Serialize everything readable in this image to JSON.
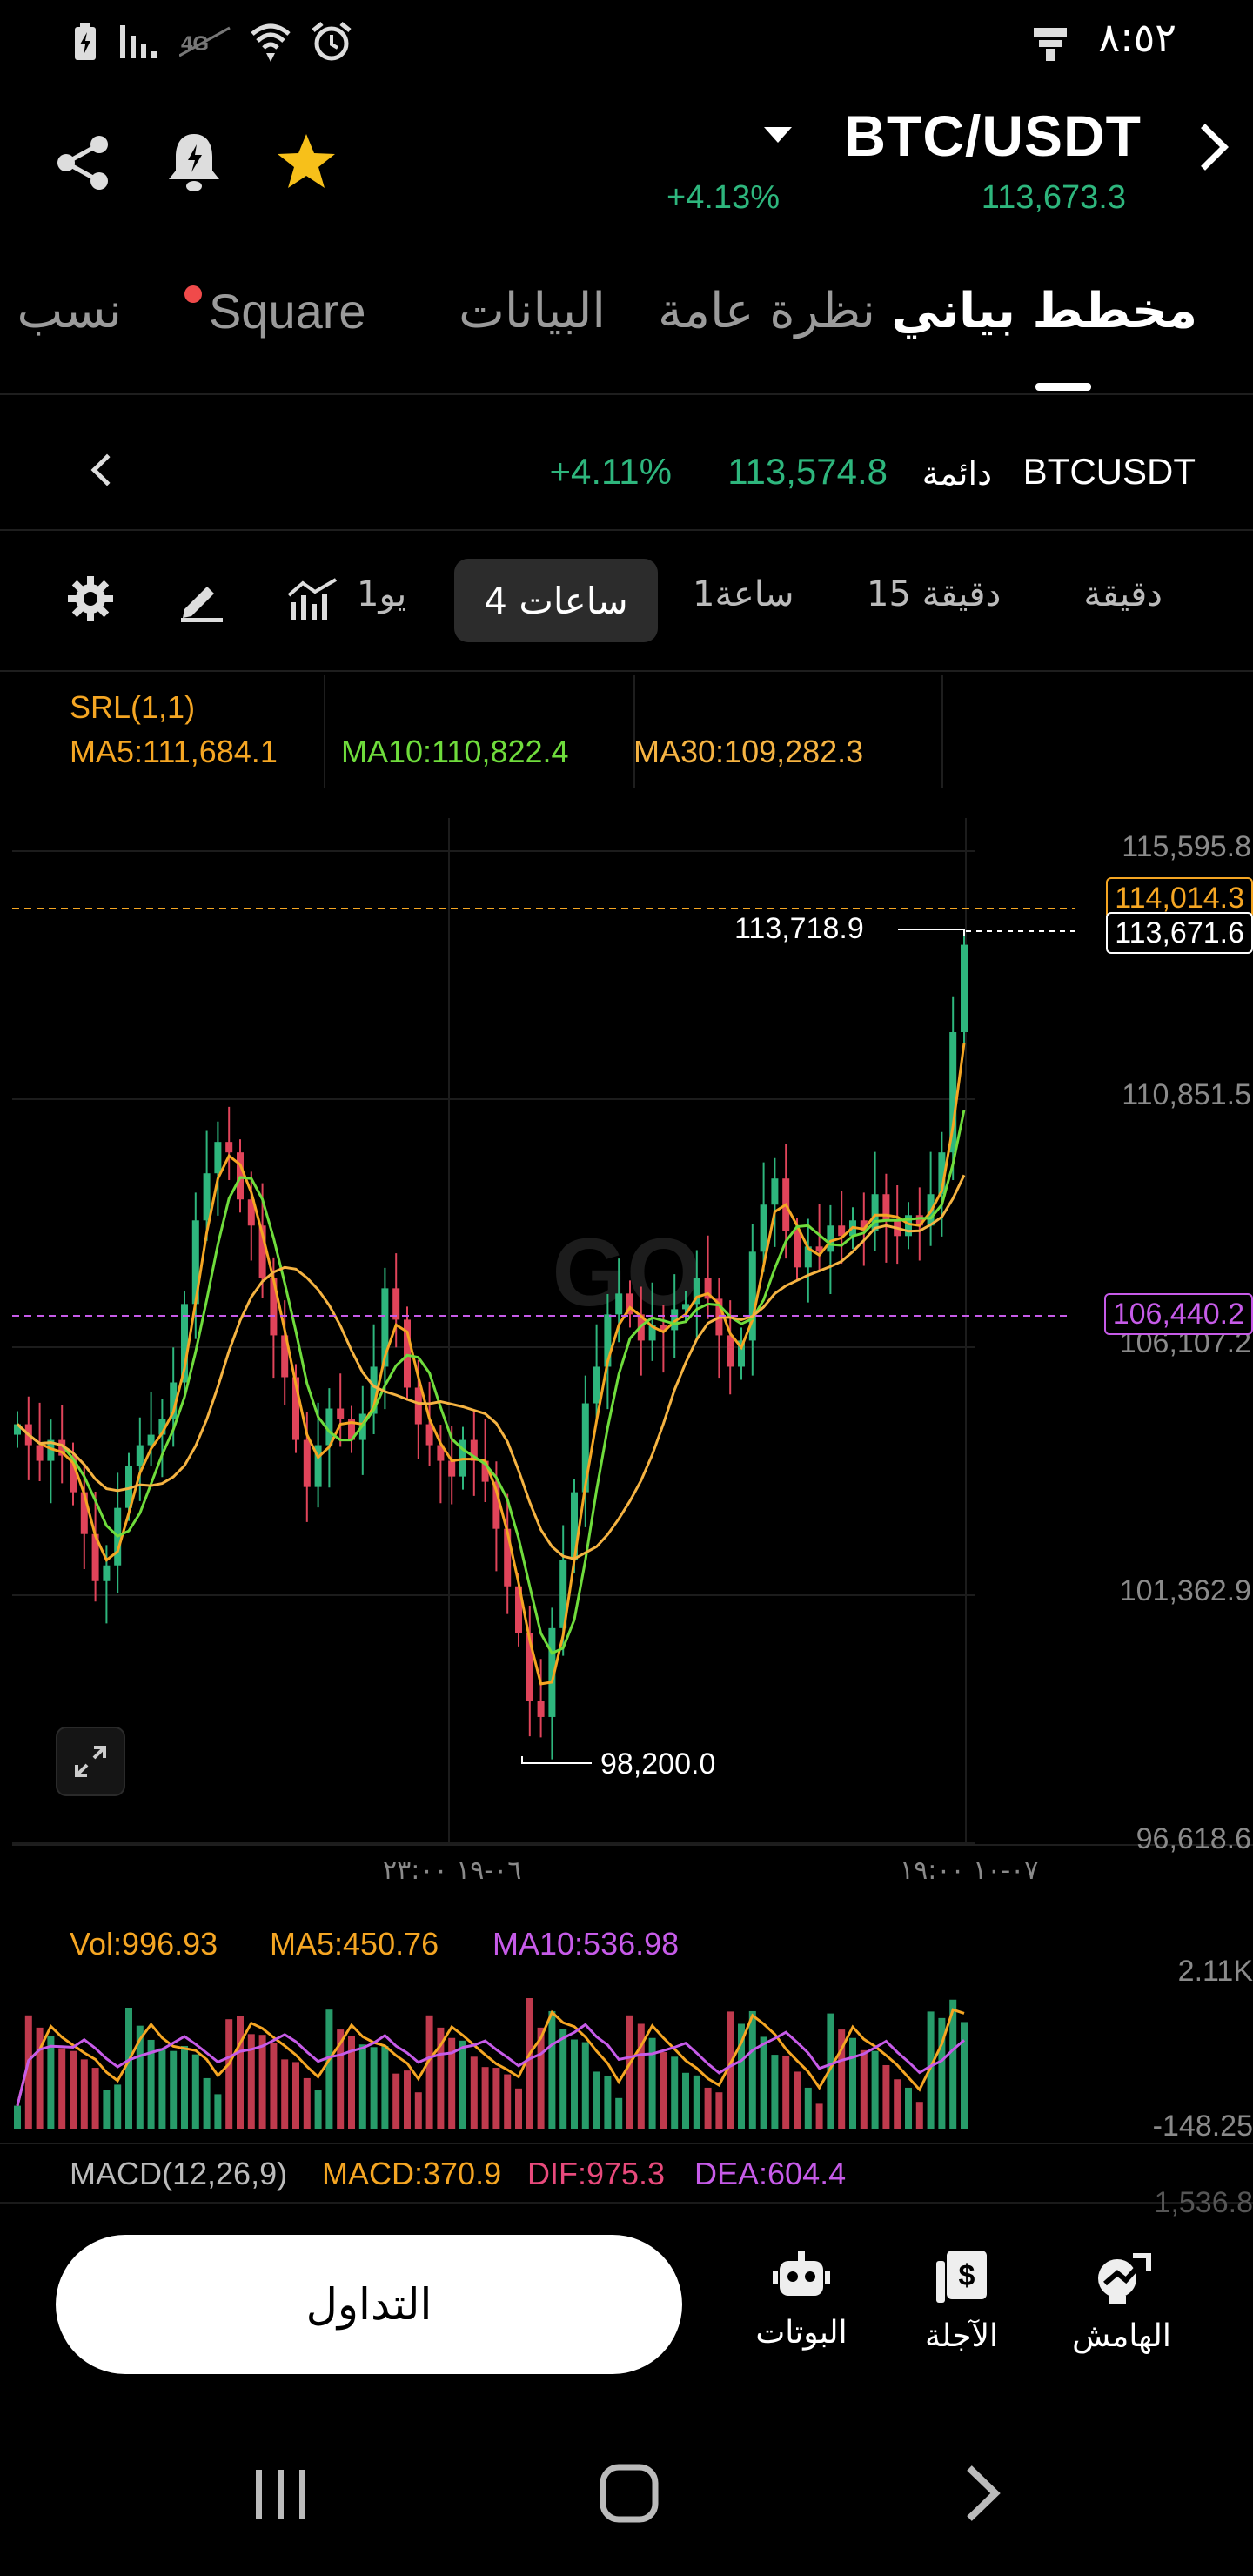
{
  "status_bar": {
    "time": "٨:٥٢"
  },
  "header": {
    "pair": "BTC/USDT",
    "change": "+4.13%",
    "price": "113,673.3"
  },
  "tabs": [
    {
      "label": "مخطط بياني",
      "active": true
    },
    {
      "label": "نظرة عامة",
      "active": false
    },
    {
      "label": "البيانات",
      "active": false
    },
    {
      "label": "Square",
      "active": false
    },
    {
      "label": "نسب",
      "active": false
    }
  ],
  "instrument": {
    "name": "BTCUSDT",
    "type": "دائمة",
    "price": "113,574.8",
    "change": "+4.11%"
  },
  "intervals": {
    "minute": "دقيقة",
    "m15": "15 دقيقة",
    "h1": "1ساعة",
    "h4": "4 ساعات",
    "d1": "1يو"
  },
  "ma_legend": {
    "srl": "SRL(1,1)",
    "ma5": "MA5:111,684.1",
    "ma10": "MA10:110,822.4",
    "ma30": "MA30:109,282.3"
  },
  "price_axis": [
    "115,595.8",
    "110,851.5",
    "106,107.2",
    "101,362.9",
    "96,618.6"
  ],
  "tags": {
    "high_label": "113,718.9",
    "last_price": "113,671.6",
    "mark_price": "114,014.3",
    "purple_line": "106,440.2",
    "low_label": "98,200.0"
  },
  "time_axis": [
    "٠٦-١٩ ٢٣:٠٠",
    "٠٧-١٠ ١٩:٠٠"
  ],
  "volume_legend": {
    "vol": "Vol:996.93",
    "ma5": "MA5:450.76",
    "ma10": "MA10:536.98",
    "axis_top": "2.11K",
    "axis_bottom": "-148.25"
  },
  "macd_legend": {
    "macd_params": "MACD(12,26,9)",
    "macd": "MACD:370.9",
    "dif": "DIF:975.3",
    "dea": "DEA:604.4",
    "axis_top": "1,536.8"
  },
  "bottom_nav": {
    "trade": "التداول",
    "bots": "البوتات",
    "futures": "الآجلة",
    "margin": "الهامش"
  },
  "colors": {
    "up": "#2eb67d",
    "down": "#e0445a",
    "ma5": "#f5a623",
    "ma10": "#6fdc3c",
    "ma30": "#f5b342",
    "purple": "#c65be8"
  },
  "chart_data": {
    "type": "candlestick",
    "price_range": [
      96618.6,
      115595.8
    ],
    "closes": [
      104500,
      104100,
      103800,
      104200,
      103900,
      103200,
      102400,
      101500,
      101800,
      102900,
      103700,
      104100,
      104300,
      104600,
      105300,
      106800,
      108400,
      109300,
      109900,
      109700,
      108800,
      108300,
      107300,
      106200,
      105400,
      104200,
      103300,
      104100,
      104800,
      104600,
      104200,
      104700,
      105600,
      107100,
      106500,
      105200,
      104500,
      104100,
      103800,
      103500,
      104200,
      103800,
      103400,
      102500,
      101400,
      100500,
      99200,
      98900,
      100600,
      101900,
      103200,
      104900,
      105600,
      106600,
      107000,
      106600,
      106100,
      106400,
      106300,
      106700,
      106800,
      107300,
      106900,
      106200,
      105600,
      106100,
      107800,
      108700,
      109200,
      108200,
      107500,
      107900,
      107800,
      108300,
      108100,
      108400,
      108200,
      108900,
      108400,
      108100,
      108500,
      108300,
      108900,
      109700,
      112000,
      113671.6
    ]
  }
}
